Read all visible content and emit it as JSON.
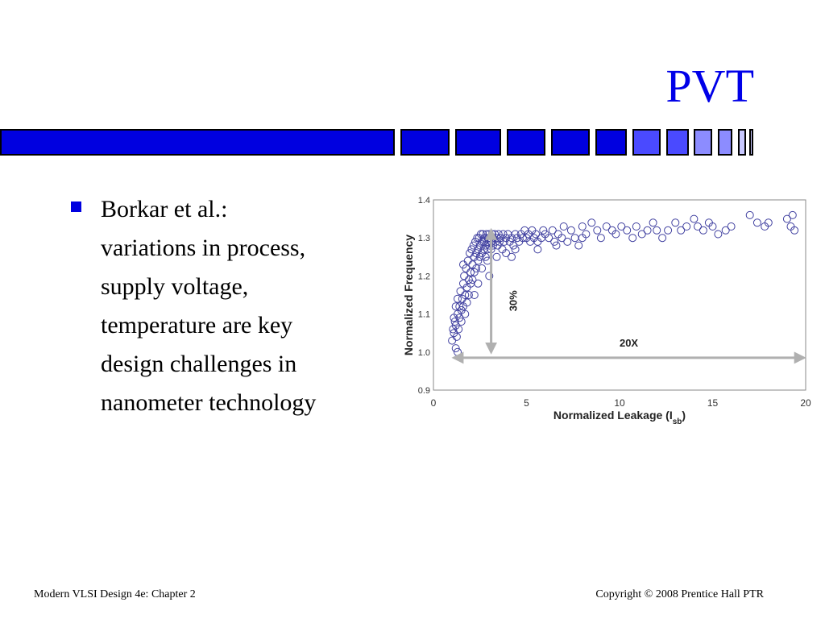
{
  "slide": {
    "title": "PVT",
    "bullet": "Borkar et al.:\nvariations in process,\nsupply voltage,\ntemperature are key\ndesign challenges in\nnanometer technology"
  },
  "footer": {
    "left": "Modern VLSI Design 4e: Chapter 2",
    "right": "Copyright ©  2008 Prentice Hall PTR"
  },
  "colors": {
    "title": "#0000e8",
    "bar_primary": "#0000e0",
    "bar_light": "#4a4aff",
    "bar_lighter": "#8c8cff",
    "bar_lightest": "#c8c8ff",
    "marker": "#4040a0",
    "arrow": "#b0b0b0"
  },
  "chart_data": {
    "type": "scatter",
    "xlabel": "Normalized Leakage (I",
    "xlabel_sub": "sb",
    "xlabel_end": ")",
    "ylabel": "Normalized Frequency",
    "xlim": [
      0,
      20
    ],
    "ylim": [
      0.9,
      1.4
    ],
    "xticks": [
      "0",
      "5",
      "10",
      "15",
      "20"
    ],
    "yticks": [
      "0.9",
      "1.0",
      "1.1",
      "1.2",
      "1.3",
      "1.4"
    ],
    "marker": "open-circle",
    "annotations": [
      {
        "label": "30%",
        "kind": "vertical-arrow",
        "x": 3.1,
        "y_from": 1.0,
        "y_to": 1.32
      },
      {
        "label": "20X",
        "kind": "horizontal-arrow",
        "y": 0.985,
        "x_from": 1.1,
        "x_to": 19.9
      }
    ],
    "series": [
      {
        "points": [
          [
            1.0,
            1.03
          ],
          [
            1.05,
            1.06
          ],
          [
            1.1,
            1.09
          ],
          [
            1.1,
            1.05
          ],
          [
            1.15,
            1.08
          ],
          [
            1.2,
            1.12
          ],
          [
            1.2,
            1.07
          ],
          [
            1.25,
            1.04
          ],
          [
            1.3,
            1.1
          ],
          [
            1.3,
            1.14
          ],
          [
            1.35,
            1.06
          ],
          [
            1.4,
            1.09
          ],
          [
            1.4,
            1.12
          ],
          [
            1.45,
            1.16
          ],
          [
            1.5,
            1.08
          ],
          [
            1.5,
            1.11
          ],
          [
            1.55,
            1.14
          ],
          [
            1.6,
            1.18
          ],
          [
            1.6,
            1.12
          ],
          [
            1.65,
            1.2
          ],
          [
            1.7,
            1.15
          ],
          [
            1.7,
            1.1
          ],
          [
            1.75,
            1.22
          ],
          [
            1.8,
            1.17
          ],
          [
            1.8,
            1.13
          ],
          [
            1.85,
            1.24
          ],
          [
            1.9,
            1.19
          ],
          [
            1.9,
            1.15
          ],
          [
            1.95,
            1.26
          ],
          [
            2.0,
            1.21
          ],
          [
            2.0,
            1.18
          ],
          [
            2.05,
            1.27
          ],
          [
            2.1,
            1.23
          ],
          [
            2.1,
            1.19
          ],
          [
            2.15,
            1.28
          ],
          [
            2.2,
            1.25
          ],
          [
            2.2,
            1.21
          ],
          [
            2.25,
            1.29
          ],
          [
            2.3,
            1.26
          ],
          [
            2.3,
            1.22
          ],
          [
            2.35,
            1.3
          ],
          [
            2.4,
            1.27
          ],
          [
            2.4,
            1.24
          ],
          [
            2.45,
            1.3
          ],
          [
            2.5,
            1.28
          ],
          [
            2.5,
            1.25
          ],
          [
            2.55,
            1.31
          ],
          [
            2.6,
            1.29
          ],
          [
            2.6,
            1.26
          ],
          [
            2.65,
            1.31
          ],
          [
            2.7,
            1.29
          ],
          [
            2.7,
            1.27
          ],
          [
            2.75,
            1.3
          ],
          [
            2.8,
            1.28
          ],
          [
            2.8,
            1.25
          ],
          [
            2.85,
            1.31
          ],
          [
            2.9,
            1.29
          ],
          [
            2.9,
            1.27
          ],
          [
            2.95,
            1.3
          ],
          [
            3.0,
            1.31
          ],
          [
            3.0,
            1.28
          ],
          [
            3.05,
            1.3
          ],
          [
            3.1,
            1.29
          ],
          [
            3.1,
            1.27
          ],
          [
            3.15,
            1.31
          ],
          [
            3.2,
            1.3
          ],
          [
            3.2,
            1.28
          ],
          [
            3.3,
            1.31
          ],
          [
            3.35,
            1.29
          ],
          [
            3.4,
            1.3
          ],
          [
            3.45,
            1.28
          ],
          [
            3.5,
            1.31
          ],
          [
            3.55,
            1.29
          ],
          [
            3.6,
            1.3
          ],
          [
            3.7,
            1.27
          ],
          [
            3.75,
            1.31
          ],
          [
            3.8,
            1.29
          ],
          [
            3.9,
            1.3
          ],
          [
            4.0,
            1.31
          ],
          [
            4.1,
            1.29
          ],
          [
            4.2,
            1.3
          ],
          [
            4.3,
            1.28
          ],
          [
            4.4,
            1.31
          ],
          [
            4.5,
            1.3
          ],
          [
            4.6,
            1.29
          ],
          [
            4.7,
            1.31
          ],
          [
            4.8,
            1.3
          ],
          [
            4.9,
            1.32
          ],
          [
            5.0,
            1.3
          ],
          [
            5.1,
            1.31
          ],
          [
            5.2,
            1.29
          ],
          [
            5.3,
            1.32
          ],
          [
            5.4,
            1.3
          ],
          [
            5.5,
            1.31
          ],
          [
            5.6,
            1.29
          ],
          [
            5.8,
            1.3
          ],
          [
            5.9,
            1.32
          ],
          [
            6.0,
            1.31
          ],
          [
            6.2,
            1.3
          ],
          [
            6.4,
            1.32
          ],
          [
            6.5,
            1.29
          ],
          [
            6.7,
            1.31
          ],
          [
            6.9,
            1.3
          ],
          [
            7.0,
            1.33
          ],
          [
            7.2,
            1.29
          ],
          [
            7.4,
            1.32
          ],
          [
            7.6,
            1.3
          ],
          [
            7.8,
            1.28
          ],
          [
            8.0,
            1.33
          ],
          [
            8.2,
            1.31
          ],
          [
            8.5,
            1.34
          ],
          [
            8.8,
            1.32
          ],
          [
            9.0,
            1.3
          ],
          [
            9.3,
            1.33
          ],
          [
            9.6,
            1.32
          ],
          [
            9.8,
            1.31
          ],
          [
            10.1,
            1.33
          ],
          [
            10.4,
            1.32
          ],
          [
            10.7,
            1.3
          ],
          [
            10.9,
            1.33
          ],
          [
            11.2,
            1.31
          ],
          [
            11.5,
            1.32
          ],
          [
            11.8,
            1.34
          ],
          [
            12.0,
            1.32
          ],
          [
            12.3,
            1.3
          ],
          [
            12.6,
            1.32
          ],
          [
            13.0,
            1.34
          ],
          [
            13.3,
            1.32
          ],
          [
            13.6,
            1.33
          ],
          [
            14.0,
            1.35
          ],
          [
            14.2,
            1.33
          ],
          [
            14.5,
            1.32
          ],
          [
            14.8,
            1.34
          ],
          [
            15.0,
            1.33
          ],
          [
            15.3,
            1.31
          ],
          [
            15.7,
            1.32
          ],
          [
            16.0,
            1.33
          ],
          [
            17.0,
            1.36
          ],
          [
            17.4,
            1.34
          ],
          [
            17.8,
            1.33
          ],
          [
            18.0,
            1.34
          ],
          [
            19.0,
            1.35
          ],
          [
            19.2,
            1.33
          ],
          [
            19.3,
            1.36
          ],
          [
            19.4,
            1.32
          ],
          [
            1.3,
            1.0
          ],
          [
            1.2,
            1.01
          ],
          [
            1.6,
            1.23
          ],
          [
            2.2,
            1.15
          ],
          [
            2.9,
            1.24
          ],
          [
            3.4,
            1.25
          ],
          [
            3.9,
            1.26
          ],
          [
            4.4,
            1.27
          ],
          [
            3.0,
            1.2
          ],
          [
            2.6,
            1.22
          ],
          [
            5.6,
            1.27
          ],
          [
            4.2,
            1.25
          ],
          [
            2.4,
            1.18
          ],
          [
            8.0,
            1.3
          ],
          [
            6.6,
            1.28
          ]
        ]
      }
    ]
  }
}
